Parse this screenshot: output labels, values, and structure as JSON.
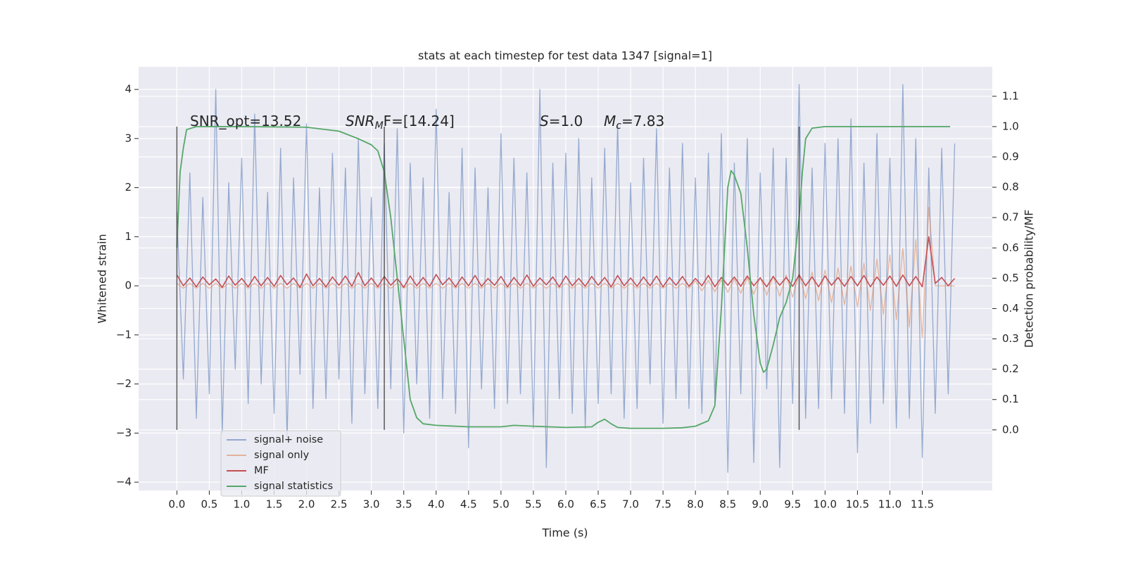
{
  "chart_data": {
    "type": "line",
    "title": "stats at each timestep for test data 1347 [signal=1]",
    "xlabel": "Time (s)",
    "ylabel": "Whitened strain",
    "y2label": "Detection probability/MF",
    "annotations": [
      [
        "SNR_opt=13.52"
      ],
      [
        "SNR",
        "M",
        "F=[14.24]"
      ],
      [
        "S",
        "=1.0"
      ],
      [
        "M",
        "c",
        "=7.83"
      ]
    ],
    "xlim": [
      -0.59,
      12.58
    ],
    "ylim": [
      -4.17,
      4.46
    ],
    "y2lim": [
      -0.2,
      1.197
    ],
    "xticks": [
      {
        "value": 0,
        "label": "0.0"
      },
      0.5,
      {
        "value": 1,
        "label": "1.0"
      },
      1.5,
      {
        "value": 2,
        "label": "2.0"
      },
      2.5,
      {
        "value": 3,
        "label": "3.0"
      },
      3.5,
      {
        "value": 4,
        "label": "4.0"
      },
      4.5,
      {
        "value": 5,
        "label": "5.0"
      },
      5.5,
      {
        "value": 6,
        "label": "6.0"
      },
      6.5,
      {
        "value": 7,
        "label": "7.0"
      },
      7.5,
      {
        "value": 8,
        "label": "8.0"
      },
      8.5,
      {
        "value": 9,
        "label": "9.0"
      },
      9.5,
      {
        "value": 10,
        "label": "10.0"
      },
      10.5,
      {
        "value": 11,
        "label": "11.0"
      },
      11.5
    ],
    "yticks": [
      {
        "value": -4,
        "label": "−4"
      },
      {
        "value": -3,
        "label": "−3"
      },
      {
        "value": -2,
        "label": "−2"
      },
      {
        "value": -1,
        "label": "−1"
      },
      0,
      1,
      2,
      3,
      4
    ],
    "y2ticks": [
      {
        "value": 0,
        "label": "0.0"
      },
      0.1,
      0.2,
      0.3,
      0.4,
      0.5,
      0.6,
      0.7,
      0.8,
      0.9,
      {
        "value": 1,
        "label": "1.0"
      },
      1.1
    ],
    "grid": true,
    "legend": "lower left",
    "vlines": {
      "x": [
        0,
        3.2,
        9.6
      ],
      "y2": [
        0,
        1
      ],
      "color": "#333333"
    },
    "x": [
      0,
      0.1,
      0.2,
      0.3,
      0.4,
      0.5,
      0.6,
      0.7,
      0.8,
      0.9,
      1,
      1.1,
      1.2,
      1.3,
      1.4,
      1.5,
      1.6,
      1.7,
      1.8,
      1.9,
      2,
      2.1,
      2.2,
      2.3,
      2.4,
      2.5,
      2.6,
      2.7,
      2.8,
      2.9,
      3,
      3.1,
      3.2,
      3.3,
      3.4,
      3.5,
      3.6,
      3.7,
      3.8,
      3.9,
      4,
      4.1,
      4.2,
      4.3,
      4.4,
      4.5,
      4.6,
      4.7,
      4.8,
      4.9,
      5,
      5.1,
      5.2,
      5.3,
      5.4,
      5.5,
      5.6,
      5.7,
      5.8,
      5.9,
      6,
      6.1,
      6.2,
      6.3,
      6.4,
      6.5,
      6.6,
      6.7,
      6.8,
      6.9,
      7,
      7.1,
      7.2,
      7.3,
      7.4,
      7.5,
      7.6,
      7.7,
      7.8,
      7.9,
      8,
      8.1,
      8.2,
      8.3,
      8.4,
      8.5,
      8.6,
      8.7,
      8.8,
      8.9,
      9,
      9.1,
      9.2,
      9.3,
      9.4,
      9.5,
      9.6,
      9.7,
      9.8,
      9.9,
      10,
      10.1,
      10.2,
      10.3,
      10.4,
      10.5,
      10.6,
      10.7,
      10.8,
      10.9,
      11,
      11.1,
      11.2,
      11.3,
      11.4,
      11.5,
      11.6,
      11.7,
      11.8,
      11.9,
      12
    ],
    "series": [
      {
        "name": "signal+ noise",
        "color": "#4c72b0",
        "values": [
          1.5,
          -1.9,
          2.3,
          -2.7,
          1.8,
          -2.2,
          4.0,
          -3.0,
          2.1,
          -1.7,
          2.6,
          -2.4,
          3.5,
          -2.0,
          1.9,
          -2.6,
          2.8,
          -3.1,
          2.2,
          -1.8,
          3.3,
          -2.5,
          2.0,
          -2.3,
          2.7,
          -1.9,
          2.4,
          -2.8,
          3.0,
          -2.2,
          1.8,
          -2.5,
          2.9,
          -2.1,
          3.2,
          -3.0,
          2.5,
          -2.0,
          2.2,
          -2.7,
          3.6,
          -2.3,
          1.9,
          -2.6,
          2.8,
          -3.3,
          2.4,
          -2.1,
          2.0,
          -2.5,
          3.1,
          -2.4,
          2.6,
          -2.2,
          2.3,
          -2.9,
          4.0,
          -3.7,
          2.5,
          -2.3,
          2.7,
          -2.6,
          3.0,
          -2.9,
          2.2,
          -2.4,
          2.8,
          -2.2,
          3.3,
          -2.7,
          2.1,
          -2.5,
          2.6,
          -2.0,
          3.2,
          -2.8,
          2.4,
          -2.3,
          2.9,
          -2.5,
          2.2,
          -2.6,
          2.7,
          -2.4,
          3.1,
          -3.8,
          2.5,
          -2.2,
          3.0,
          -3.6,
          2.3,
          -2.1,
          2.8,
          -3.7,
          2.6,
          -2.4,
          4.1,
          -2.7,
          2.4,
          -2.5,
          2.9,
          -2.3,
          3.0,
          -2.6,
          3.4,
          -3.4,
          2.5,
          -2.8,
          3.1,
          -2.4,
          2.6,
          -2.9,
          4.1,
          -2.7,
          3.0,
          -3.5,
          2.4,
          -2.6,
          2.8,
          -2.2,
          2.9
        ]
      },
      {
        "name": "signal only",
        "color": "#dd8452",
        "values": [
          0.05,
          -0.05,
          0.05,
          -0.05,
          0.05,
          -0.05,
          0.05,
          -0.05,
          0.05,
          -0.05,
          0.05,
          -0.05,
          0.05,
          -0.05,
          0.05,
          -0.05,
          0.05,
          -0.05,
          0.05,
          -0.05,
          0.05,
          -0.05,
          0.05,
          -0.05,
          0.05,
          -0.05,
          0.05,
          -0.05,
          0.05,
          -0.05,
          0.05,
          -0.05,
          0.05,
          -0.05,
          0.05,
          -0.05,
          0.05,
          -0.05,
          0.05,
          -0.05,
          0.05,
          -0.05,
          0.05,
          -0.05,
          0.05,
          -0.05,
          0.05,
          -0.05,
          0.05,
          -0.05,
          0.05,
          -0.05,
          0.05,
          -0.05,
          0.05,
          -0.05,
          0.05,
          -0.05,
          0.05,
          -0.05,
          0.05,
          -0.05,
          0.05,
          -0.05,
          0.05,
          -0.05,
          0.05,
          -0.05,
          0.05,
          -0.05,
          0.05,
          -0.05,
          0.05,
          -0.05,
          0.05,
          -0.05,
          0.05,
          -0.05,
          0.05,
          -0.05,
          0.1,
          -0.1,
          0.11,
          -0.12,
          0.12,
          -0.13,
          0.14,
          -0.15,
          0.16,
          -0.17,
          0.18,
          -0.19,
          0.2,
          -0.21,
          0.22,
          -0.23,
          0.25,
          -0.26,
          0.28,
          -0.3,
          0.32,
          -0.34,
          0.36,
          -0.38,
          0.4,
          -0.43,
          0.46,
          -0.5,
          0.54,
          -0.58,
          0.63,
          -0.69,
          0.76,
          -0.84,
          0.94,
          -1.06,
          1.6,
          0,
          0,
          0,
          0
        ]
      },
      {
        "name": "MF",
        "color": "#c44e52",
        "values": [
          0.22,
          0.0,
          0.16,
          -0.02,
          0.18,
          0.02,
          0.14,
          -0.03,
          0.2,
          0.01,
          0.15,
          -0.02,
          0.19,
          0.0,
          0.17,
          -0.01,
          0.21,
          0.02,
          0.16,
          -0.03,
          0.24,
          0.0,
          0.15,
          -0.02,
          0.18,
          0.01,
          0.2,
          -0.01,
          0.27,
          0.0,
          0.16,
          -0.02,
          0.19,
          0.01,
          0.15,
          -0.03,
          0.2,
          0.0,
          0.17,
          -0.01,
          0.23,
          0.02,
          0.16,
          -0.02,
          0.18,
          0.0,
          0.21,
          -0.01,
          0.15,
          0.01,
          0.19,
          -0.02,
          0.17,
          0.0,
          0.22,
          -0.01,
          0.16,
          0.02,
          0.18,
          -0.02,
          0.2,
          0.0,
          0.15,
          -0.01,
          0.19,
          0.01,
          0.17,
          -0.02,
          0.21,
          0.0,
          0.16,
          -0.01,
          0.18,
          0.0,
          0.2,
          -0.02,
          0.17,
          0.01,
          0.19,
          -0.01,
          0.15,
          0.0,
          0.21,
          -0.02,
          0.17,
          0.01,
          0.18,
          -0.01,
          0.2,
          0.0,
          0.16,
          -0.02,
          0.19,
          0.01,
          0.17,
          -0.01,
          0.22,
          0.0,
          0.18,
          -0.02,
          0.2,
          0.01,
          0.17,
          -0.01,
          0.19,
          0.0,
          0.21,
          -0.02,
          0.18,
          0.01,
          0.2,
          -0.01,
          0.22,
          0.0,
          0.19,
          -0.02,
          1.0,
          0.05,
          0.17,
          0.0,
          0.15
        ]
      },
      {
        "name": "signal statistics",
        "color": "#55a868",
        "axis": "y2",
        "x": [
          0,
          0.05,
          0.1,
          0.15,
          0.3,
          1,
          2,
          2.5,
          2.8,
          3.0,
          3.1,
          3.2,
          3.3,
          3.4,
          3.5,
          3.6,
          3.7,
          3.8,
          4,
          4.5,
          5,
          5.2,
          5.5,
          6,
          6.4,
          6.5,
          6.6,
          6.7,
          6.8,
          7,
          7.5,
          7.8,
          8,
          8.2,
          8.3,
          8.4,
          8.5,
          8.55,
          8.6,
          8.7,
          8.8,
          8.9,
          9.0,
          9.05,
          9.1,
          9.2,
          9.3,
          9.4,
          9.5,
          9.6,
          9.65,
          9.7,
          9.8,
          10,
          11,
          11.93
        ],
        "values": [
          0.6,
          0.85,
          0.93,
          0.99,
          1.0,
          1.0,
          0.998,
          0.985,
          0.96,
          0.94,
          0.92,
          0.85,
          0.7,
          0.5,
          0.3,
          0.1,
          0.04,
          0.02,
          0.015,
          0.01,
          0.01,
          0.015,
          0.012,
          0.008,
          0.01,
          0.025,
          0.035,
          0.02,
          0.008,
          0.005,
          0.005,
          0.007,
          0.012,
          0.03,
          0.08,
          0.4,
          0.8,
          0.855,
          0.84,
          0.78,
          0.6,
          0.38,
          0.22,
          0.19,
          0.2,
          0.28,
          0.37,
          0.42,
          0.5,
          0.7,
          0.85,
          0.96,
          0.995,
          1.0,
          1.0,
          1.0
        ]
      }
    ]
  }
}
